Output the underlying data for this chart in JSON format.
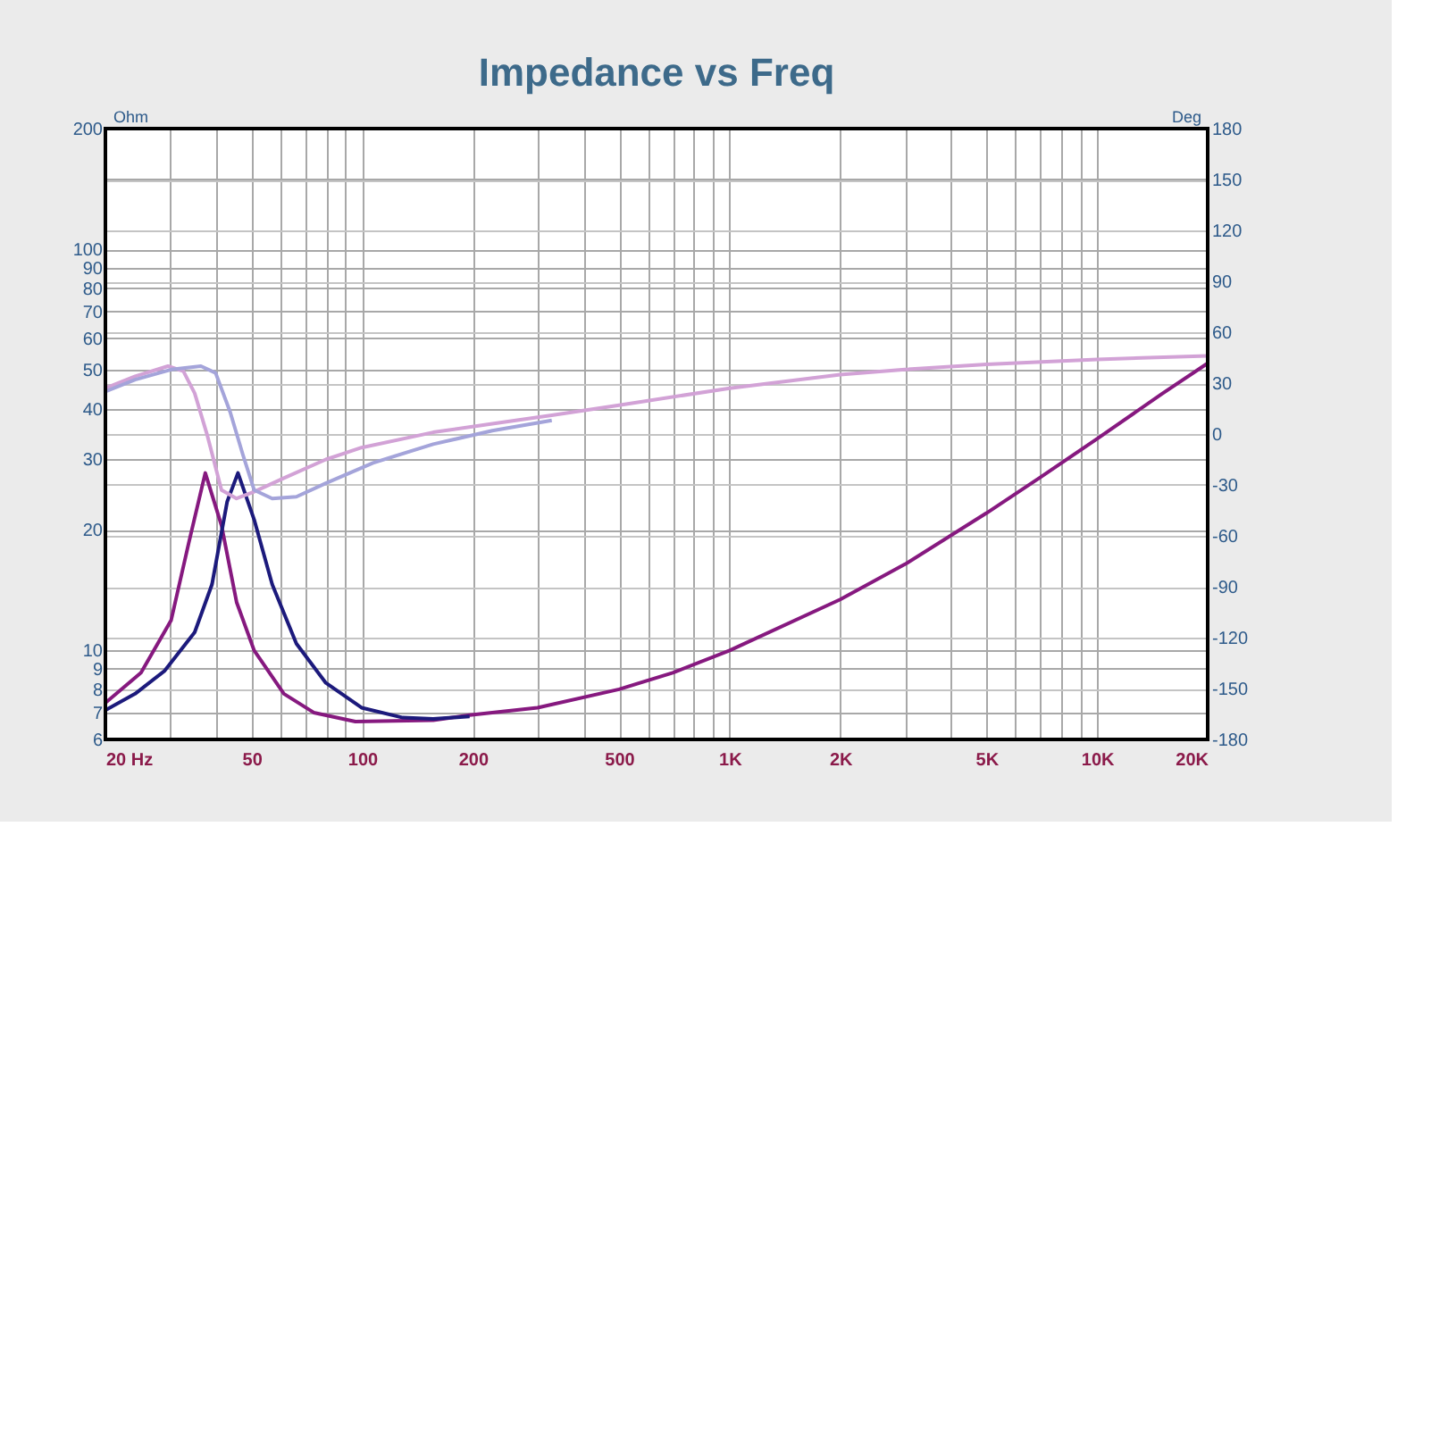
{
  "chart_data": {
    "type": "line",
    "title": "Impedance vs Freq",
    "ylabel": "Ohm",
    "y2label": "Deg",
    "series": [
      {
        "color": "#86197f",
        "x": [
          20,
          25,
          30.2,
          33.7,
          37.4,
          41.4,
          45.5,
          50.8,
          61.2,
          73.8,
          95.8,
          156,
          196,
          300,
          500,
          700,
          1000,
          2000,
          3000,
          5000,
          7000,
          10000,
          15000,
          20000
        ],
        "values": [
          7.4,
          8.8,
          11.9,
          18.5,
          27.7,
          20.5,
          13.2,
          10,
          7.8,
          7,
          6.65,
          6.7,
          6.9,
          7.2,
          8,
          8.8,
          10,
          13.4,
          16.4,
          22,
          27,
          33.7,
          43.6,
          52
        ]
      },
      {
        "color": "#1c1a7c",
        "x": [
          20,
          24.1,
          29,
          35,
          39,
          42.9,
          45.9,
          50.8,
          56.9,
          66.2,
          79.6,
          99.6,
          129,
          156,
          196
        ],
        "values": [
          7.1,
          7.8,
          8.9,
          11.1,
          14.6,
          23.5,
          27.7,
          21.2,
          14.6,
          10.4,
          8.3,
          7.2,
          6.8,
          6.75,
          6.85
        ]
      },
      {
        "color": "#d2a2d6",
        "axis": "y2",
        "x": [
          20,
          24.1,
          29.6,
          32.6,
          35,
          37.9,
          41.4,
          45.5,
          50.8,
          61.2,
          79.6,
          99.6,
          156,
          226,
          328,
          500,
          1000,
          2000,
          3000,
          5000,
          10000,
          20000
        ],
        "values": [
          27,
          34,
          40,
          37,
          24,
          -1,
          -33,
          -38,
          -34,
          -26,
          -15,
          -8,
          1,
          6,
          11,
          17,
          27,
          35,
          38,
          41,
          44,
          46
        ]
      },
      {
        "color": "#a4a4da",
        "axis": "y2",
        "x": [
          20,
          24.1,
          30.2,
          36.4,
          39.9,
          43.7,
          47.3,
          50.8,
          56.9,
          66.2,
          79.6,
          107,
          156,
          226,
          328
        ],
        "values": [
          25,
          32,
          38,
          40,
          36,
          13,
          -12,
          -33,
          -38,
          -37,
          -29,
          -17,
          -6,
          2,
          8
        ]
      }
    ],
    "log": "xy",
    "grid": true,
    "xlim": [
      20,
      20000
    ],
    "xticks": [
      {
        "value": 20,
        "label": "20  Hz"
      },
      {
        "value": 30,
        "label": null
      },
      {
        "value": 40,
        "label": null
      },
      50,
      {
        "value": 60,
        "label": null
      },
      {
        "value": 70,
        "label": null
      },
      {
        "value": 80,
        "label": null
      },
      {
        "value": 90,
        "label": null
      },
      100,
      200,
      {
        "value": 300,
        "label": null
      },
      {
        "value": 400,
        "label": null
      },
      500,
      {
        "value": 600,
        "label": null
      },
      {
        "value": 700,
        "label": null
      },
      {
        "value": 800,
        "label": null
      },
      {
        "value": 900,
        "label": null
      },
      {
        "value": 1000,
        "label": "1K"
      },
      {
        "value": 2000,
        "label": "2K"
      },
      {
        "value": 3000,
        "label": null
      },
      {
        "value": 4000,
        "label": null
      },
      {
        "value": 5000,
        "label": "5K"
      },
      {
        "value": 6000,
        "label": null
      },
      {
        "value": 7000,
        "label": null
      },
      {
        "value": 8000,
        "label": null
      },
      {
        "value": 9000,
        "label": null
      },
      {
        "value": 10000,
        "label": "10K"
      },
      {
        "value": 20000,
        "label": "20K"
      }
    ],
    "ylim": [
      6,
      200
    ],
    "yticks": [
      6,
      7,
      8,
      9,
      10,
      20,
      30,
      40,
      50,
      60,
      70,
      80,
      90,
      100,
      {
        "value": 150,
        "label": null
      },
      200
    ],
    "y2lim": [
      -180,
      180
    ],
    "y2ticks": [
      -180,
      -150,
      -120,
      -90,
      -60,
      -30,
      0,
      30,
      60,
      90,
      120,
      150,
      180
    ]
  }
}
